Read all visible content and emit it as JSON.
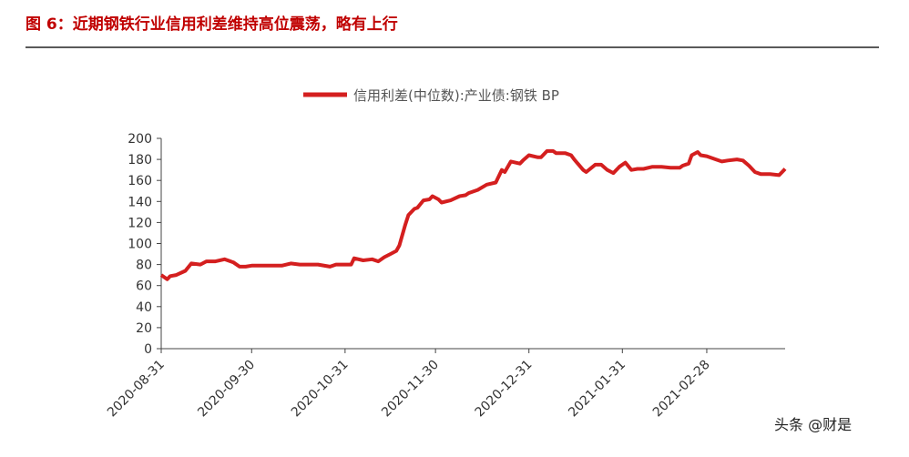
{
  "chart_data": {
    "type": "line",
    "title": "图 6：近期钢铁行业信用利差维持高位震荡，略有上行",
    "watermark": "头条 @财是",
    "x": [
      "2020-08-31",
      "2020-09-02",
      "2020-09-03",
      "2020-09-05",
      "2020-09-08",
      "2020-09-10",
      "2020-09-13",
      "2020-09-15",
      "2020-09-18",
      "2020-09-21",
      "2020-09-24",
      "2020-09-26",
      "2020-09-28",
      "2020-09-30",
      "2020-10-04",
      "2020-10-10",
      "2020-10-13",
      "2020-10-16",
      "2020-10-22",
      "2020-10-26",
      "2020-10-28",
      "2020-11-02",
      "2020-11-03",
      "2020-11-06",
      "2020-11-09",
      "2020-11-11",
      "2020-11-13",
      "2020-11-15",
      "2020-11-17",
      "2020-11-18",
      "2020-11-20",
      "2020-11-21",
      "2020-11-23",
      "2020-11-24",
      "2020-11-26",
      "2020-11-28",
      "2020-11-29",
      "2020-12-01",
      "2020-12-02",
      "2020-12-05",
      "2020-12-08",
      "2020-12-10",
      "2020-12-11",
      "2020-12-14",
      "2020-12-17",
      "2020-12-20",
      "2020-12-22",
      "2020-12-23",
      "2020-12-25",
      "2020-12-28",
      "2020-12-29",
      "2020-12-31",
      "2021-01-03",
      "2021-01-04",
      "2021-01-06",
      "2021-01-08",
      "2021-01-09",
      "2021-01-12",
      "2021-01-14",
      "2021-01-15",
      "2021-01-18",
      "2021-01-19",
      "2021-01-22",
      "2021-01-24",
      "2021-01-26",
      "2021-01-28",
      "2021-01-30",
      "2021-02-01",
      "2021-02-03",
      "2021-02-05",
      "2021-02-07",
      "2021-02-10",
      "2021-02-13",
      "2021-02-16",
      "2021-02-19",
      "2021-02-20",
      "2021-02-22",
      "2021-02-23",
      "2021-02-25",
      "2021-02-26",
      "2021-02-28",
      "2021-03-03",
      "2021-03-05",
      "2021-03-07",
      "2021-03-10",
      "2021-03-12",
      "2021-03-14",
      "2021-03-16",
      "2021-03-18",
      "2021-03-21",
      "2021-03-24",
      "2021-03-25",
      "2021-03-26"
    ],
    "series": [
      {
        "name": "信用利差(中位数):产业债:钢铁 BP",
        "color": "#d41f1f",
        "values": [
          70,
          66,
          69,
          70,
          74,
          81,
          80,
          83,
          83,
          85,
          82,
          78,
          78,
          79,
          79,
          79,
          81,
          80,
          80,
          78,
          80,
          80,
          86,
          84,
          85,
          83,
          87,
          90,
          93,
          98,
          118,
          127,
          133,
          134,
          141,
          142,
          145,
          142,
          139,
          141,
          145,
          146,
          148,
          151,
          156,
          158,
          170,
          168,
          178,
          176,
          179,
          184,
          182,
          182,
          188,
          188,
          186,
          186,
          184,
          180,
          170,
          168,
          175,
          175,
          170,
          167,
          173,
          177,
          170,
          171,
          171,
          173,
          173,
          172,
          172,
          174,
          176,
          184,
          187,
          184,
          183,
          180,
          178,
          179,
          180,
          179,
          174,
          168,
          166,
          166,
          165,
          168,
          171
        ]
      }
    ],
    "xlim": [
      "2020-08-31",
      "2021-03-26"
    ],
    "xticks": [
      "2020-08-31",
      "2020-09-30",
      "2020-10-31",
      "2020-11-30",
      "2020-12-31",
      "2021-01-31",
      "2021-02-28"
    ],
    "ylim": [
      0,
      200
    ],
    "yticks": [
      0,
      20,
      40,
      60,
      80,
      100,
      120,
      140,
      160,
      180,
      200
    ],
    "grid": false
  }
}
